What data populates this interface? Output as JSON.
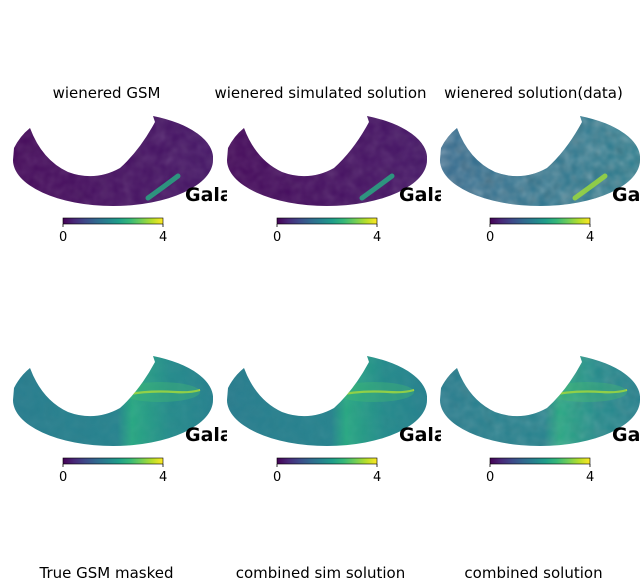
{
  "chart_data": {
    "type": "heatmap",
    "projection": "mollweide",
    "colormap": "viridis",
    "colorbar": {
      "min": 0,
      "max": 4,
      "tick_labels": [
        "0",
        "4"
      ]
    },
    "coordinate_label": "Gala",
    "panels": [
      {
        "title": "wienered GSM",
        "field": "low-masked"
      },
      {
        "title": "wienered simulated solution",
        "field": "low-masked"
      },
      {
        "title": "wienered solution(data)",
        "field": "noisy-masked"
      },
      {
        "title": "True GSM masked",
        "field": "smooth-galaxy"
      },
      {
        "title": "combined sim solution",
        "field": "smooth-galaxy"
      },
      {
        "title": "combined solution",
        "field": "smooth-noisy"
      }
    ]
  },
  "colors": {
    "viridis_dark": "#440154",
    "viridis_mid": "#21918c",
    "viridis_light": "#fde725",
    "viridis_green": "#5ec962"
  }
}
